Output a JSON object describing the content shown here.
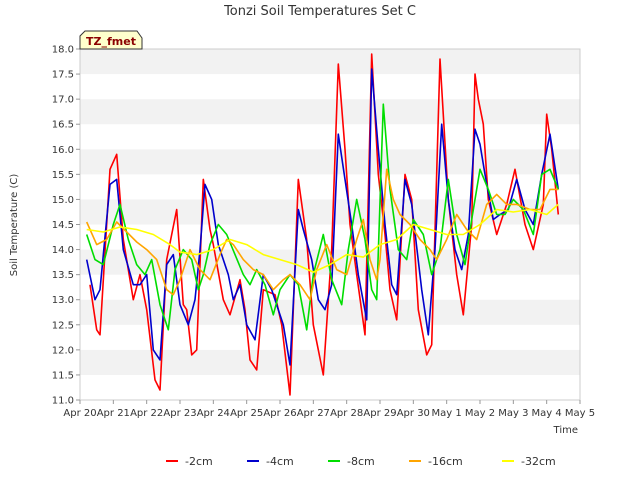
{
  "chart_data": {
    "type": "line",
    "title": "Tonzi Soil Temperatures Set C",
    "xlabel": "Time",
    "ylabel": "Soil Temperature (C)",
    "badge": "TZ_fmet",
    "x_ticks": [
      "Apr 20",
      "Apr 21",
      "Apr 22",
      "Apr 23",
      "Apr 24",
      "Apr 25",
      "Apr 26",
      "Apr 27",
      "Apr 28",
      "Apr 29",
      "Apr 30",
      "May 1",
      "May 2",
      "May 3",
      "May 4",
      "May 5"
    ],
    "xlim": [
      0,
      15
    ],
    "ylim": [
      11.0,
      18.0
    ],
    "y_ticks": [
      "11.0",
      "11.5",
      "12.0",
      "12.5",
      "13.0",
      "13.5",
      "14.0",
      "14.5",
      "15.0",
      "15.5",
      "16.0",
      "16.5",
      "17.0",
      "17.5",
      "18.0"
    ],
    "grid": "horizontal bands",
    "legend": "bottom",
    "series": [
      {
        "name": "-2cm",
        "color": "#ff0000",
        "x": [
          0.3,
          0.5,
          0.6,
          0.9,
          1.1,
          1.3,
          1.6,
          1.8,
          2.0,
          2.25,
          2.4,
          2.6,
          2.9,
          3.1,
          3.2,
          3.35,
          3.5,
          3.7,
          3.9,
          4.0,
          4.3,
          4.5,
          4.8,
          4.95,
          5.1,
          5.3,
          5.5,
          5.85,
          6.05,
          6.3,
          6.55,
          6.8,
          7.0,
          7.3,
          7.55,
          7.75,
          7.95,
          8.1,
          8.3,
          8.55,
          8.75,
          8.95,
          9.15,
          9.3,
          9.5,
          9.75,
          9.95,
          10.15,
          10.4,
          10.55,
          10.8,
          11.05,
          11.3,
          11.5,
          11.75,
          11.85,
          11.95,
          12.1,
          12.25,
          12.5,
          12.8,
          13.05,
          13.35,
          13.6,
          13.9,
          14.0,
          14.15,
          14.35
        ],
        "values": [
          13.3,
          12.4,
          12.3,
          15.6,
          15.9,
          14.2,
          13.0,
          13.5,
          12.8,
          11.4,
          11.2,
          13.8,
          14.8,
          12.9,
          12.8,
          11.9,
          12.0,
          15.4,
          14.4,
          14.1,
          13.0,
          12.7,
          13.4,
          12.8,
          11.8,
          11.6,
          13.2,
          13.1,
          12.5,
          11.1,
          15.4,
          14.2,
          12.5,
          11.5,
          14.0,
          17.7,
          16.0,
          14.5,
          13.5,
          12.3,
          17.9,
          15.5,
          14.3,
          13.2,
          12.6,
          15.5,
          15.0,
          12.8,
          11.9,
          12.1,
          17.8,
          15.0,
          13.5,
          12.7,
          14.5,
          17.5,
          17.0,
          16.5,
          15.0,
          14.3,
          14.9,
          15.6,
          14.5,
          14.0,
          14.9,
          16.7,
          16.0,
          14.7
        ]
      },
      {
        "name": "-4cm",
        "color": "#0000cc",
        "x": [
          0.2,
          0.45,
          0.6,
          0.9,
          1.1,
          1.3,
          1.6,
          1.8,
          2.0,
          2.2,
          2.4,
          2.6,
          2.8,
          3.0,
          3.25,
          3.45,
          3.6,
          3.75,
          3.95,
          4.15,
          4.45,
          4.6,
          4.8,
          5.0,
          5.25,
          5.5,
          5.75,
          6.1,
          6.3,
          6.55,
          6.7,
          6.95,
          7.15,
          7.35,
          7.55,
          7.75,
          7.95,
          8.15,
          8.35,
          8.6,
          8.75,
          8.95,
          9.15,
          9.35,
          9.5,
          9.75,
          9.95,
          10.25,
          10.45,
          10.65,
          10.85,
          11.05,
          11.25,
          11.45,
          11.65,
          11.85,
          12.0,
          12.15,
          12.4,
          12.6,
          12.85,
          13.1,
          13.35,
          13.6,
          13.85,
          14.1,
          14.35
        ],
        "values": [
          13.8,
          13.0,
          13.2,
          15.3,
          15.4,
          14.0,
          13.3,
          13.3,
          13.5,
          12.0,
          11.8,
          13.7,
          13.9,
          12.9,
          12.5,
          13.0,
          14.0,
          15.3,
          15.0,
          14.1,
          13.5,
          13.0,
          13.3,
          12.5,
          12.2,
          13.5,
          13.2,
          12.5,
          11.7,
          14.8,
          14.4,
          13.8,
          13.0,
          12.8,
          13.3,
          16.3,
          15.4,
          14.5,
          13.5,
          12.6,
          17.6,
          16.0,
          14.5,
          13.3,
          13.1,
          15.4,
          14.9,
          13.2,
          12.3,
          14.0,
          16.5,
          15.0,
          14.0,
          13.6,
          14.3,
          16.4,
          16.1,
          15.5,
          14.6,
          14.7,
          14.8,
          15.4,
          14.8,
          14.5,
          15.5,
          16.3,
          15.2
        ]
      },
      {
        "name": "-8cm",
        "color": "#00dd00",
        "x": [
          0.2,
          0.45,
          0.7,
          1.0,
          1.2,
          1.45,
          1.7,
          1.95,
          2.15,
          2.4,
          2.65,
          2.85,
          3.1,
          3.35,
          3.55,
          3.7,
          3.9,
          4.15,
          4.4,
          4.65,
          4.9,
          5.1,
          5.3,
          5.55,
          5.8,
          6.0,
          6.3,
          6.55,
          6.8,
          7.0,
          7.3,
          7.55,
          7.85,
          8.05,
          8.3,
          8.55,
          8.75,
          8.9,
          9.1,
          9.3,
          9.55,
          9.8,
          10.0,
          10.3,
          10.55,
          10.8,
          11.05,
          11.3,
          11.55,
          11.75,
          12.0,
          12.25,
          12.5,
          12.75,
          13.0,
          13.3,
          13.6,
          13.85,
          14.1,
          14.35
        ],
        "values": [
          14.3,
          13.8,
          13.7,
          14.5,
          14.9,
          14.2,
          13.7,
          13.5,
          13.8,
          12.9,
          12.4,
          13.6,
          14.0,
          13.8,
          13.2,
          13.5,
          14.1,
          14.5,
          14.3,
          13.9,
          13.5,
          13.3,
          13.6,
          13.3,
          12.7,
          13.2,
          13.5,
          13.3,
          12.4,
          13.5,
          14.3,
          13.4,
          12.9,
          14.0,
          15.0,
          14.2,
          13.2,
          13.0,
          16.9,
          15.2,
          14.0,
          13.8,
          14.6,
          14.3,
          13.5,
          14.0,
          15.4,
          14.3,
          13.7,
          14.6,
          15.6,
          15.2,
          14.7,
          14.7,
          15.0,
          14.8,
          14.3,
          15.5,
          15.6,
          15.2
        ]
      },
      {
        "name": "-16cm",
        "color": "#ffa500",
        "x": [
          0.2,
          0.5,
          0.8,
          1.1,
          1.4,
          1.7,
          2.0,
          2.3,
          2.6,
          2.8,
          3.0,
          3.3,
          3.6,
          3.9,
          4.2,
          4.4,
          4.6,
          4.9,
          5.2,
          5.5,
          5.8,
          6.1,
          6.3,
          6.6,
          6.9,
          7.1,
          7.4,
          7.7,
          8.0,
          8.3,
          8.5,
          8.7,
          8.9,
          9.0,
          9.2,
          9.4,
          9.6,
          9.9,
          10.2,
          10.5,
          10.7,
          11.0,
          11.3,
          11.6,
          11.9,
          12.2,
          12.5,
          12.8,
          13.1,
          13.5,
          13.8,
          14.1,
          14.35
        ],
        "values": [
          14.55,
          14.1,
          14.2,
          14.55,
          14.35,
          14.15,
          14.0,
          13.8,
          13.2,
          13.1,
          13.4,
          14.0,
          13.6,
          13.4,
          13.9,
          14.2,
          14.1,
          13.8,
          13.6,
          13.5,
          13.2,
          13.4,
          13.5,
          13.3,
          13.0,
          13.6,
          14.1,
          13.6,
          13.5,
          14.2,
          14.6,
          13.8,
          13.4,
          13.8,
          15.6,
          15.0,
          14.7,
          14.5,
          14.2,
          14.0,
          13.8,
          14.2,
          14.7,
          14.4,
          14.2,
          14.9,
          15.1,
          14.9,
          14.9,
          14.8,
          14.8,
          15.2,
          15.2
        ]
      },
      {
        "name": "-32cm",
        "color": "#ffff00",
        "x": [
          0.2,
          0.7,
          1.2,
          1.7,
          2.2,
          2.7,
          3.0,
          3.5,
          4.0,
          4.5,
          5.0,
          5.5,
          6.0,
          6.5,
          7.0,
          7.5,
          8.0,
          8.5,
          9.0,
          9.5,
          10.0,
          10.5,
          11.0,
          11.5,
          12.0,
          12.5,
          13.0,
          13.5,
          14.0,
          14.35
        ],
        "values": [
          14.4,
          14.35,
          14.45,
          14.4,
          14.3,
          14.1,
          13.95,
          13.9,
          14.0,
          14.2,
          14.1,
          13.9,
          13.8,
          13.7,
          13.55,
          13.7,
          13.9,
          13.85,
          14.1,
          14.2,
          14.5,
          14.4,
          14.3,
          14.3,
          14.5,
          14.8,
          14.75,
          14.8,
          14.7,
          14.9
        ]
      }
    ]
  }
}
